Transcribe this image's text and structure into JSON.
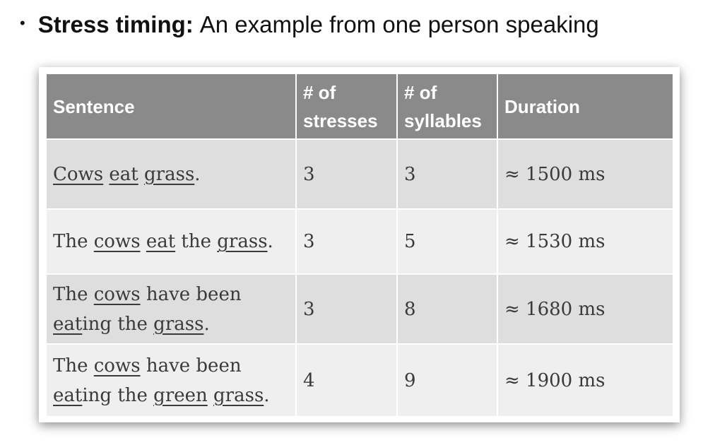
{
  "heading": {
    "bullet": "•",
    "bold": "Stress timing:",
    "rest": "An example from one person speaking"
  },
  "table": {
    "headers": {
      "sentence": "Sentence",
      "stresses_line1": "# of",
      "stresses_line2": "stresses",
      "syllables_line1": "# of",
      "syllables_line2": "syllables",
      "duration": "Duration"
    },
    "rows": [
      {
        "segments": [
          {
            "text": "Cows",
            "u": true
          },
          {
            "text": " ",
            "u": false
          },
          {
            "text": "eat",
            "u": true
          },
          {
            "text": " ",
            "u": false
          },
          {
            "text": "grass",
            "u": true
          },
          {
            "text": ".",
            "u": false
          }
        ],
        "stresses": "3",
        "syllables": "3",
        "duration": "≈ 1500 ms"
      },
      {
        "segments": [
          {
            "text": "The ",
            "u": false
          },
          {
            "text": "cows",
            "u": true
          },
          {
            "text": " ",
            "u": false
          },
          {
            "text": "eat",
            "u": true
          },
          {
            "text": " the ",
            "u": false
          },
          {
            "text": "grass",
            "u": true
          },
          {
            "text": ".",
            "u": false
          }
        ],
        "stresses": "3",
        "syllables": "5",
        "duration": "≈ 1530 ms"
      },
      {
        "segments": [
          {
            "text": "The ",
            "u": false
          },
          {
            "text": "cows",
            "u": true
          },
          {
            "text": " have been",
            "u": false
          },
          {
            "br": true
          },
          {
            "text": "eat",
            "u": true
          },
          {
            "text": "ing the ",
            "u": false
          },
          {
            "text": "grass",
            "u": true
          },
          {
            "text": ".",
            "u": false
          }
        ],
        "stresses": "3",
        "syllables": "8",
        "duration": "≈ 1680 ms"
      },
      {
        "segments": [
          {
            "text": "The ",
            "u": false
          },
          {
            "text": "cows",
            "u": true
          },
          {
            "text": " have been",
            "u": false
          },
          {
            "br": true
          },
          {
            "text": "eat",
            "u": true
          },
          {
            "text": "ing the ",
            "u": false
          },
          {
            "text": "green",
            "u": true
          },
          {
            "text": " ",
            "u": false
          },
          {
            "text": "grass",
            "u": true
          },
          {
            "text": ".",
            "u": false
          }
        ],
        "stresses": "4",
        "syllables": "9",
        "duration": "≈ 1900 ms"
      }
    ]
  }
}
